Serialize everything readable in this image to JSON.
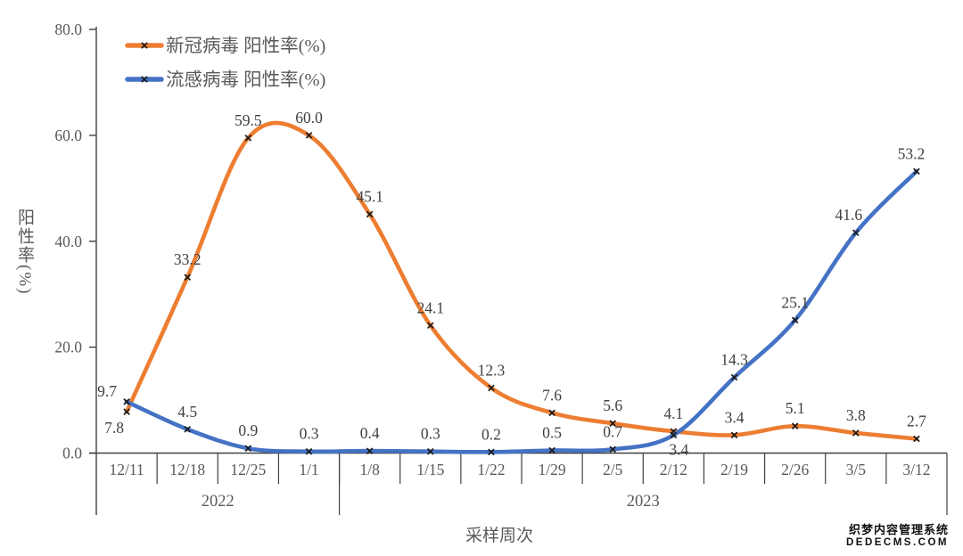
{
  "watermark": {
    "line1": "织梦内容管理系统",
    "line2": "DEDECMS.COM"
  },
  "chart_data": {
    "type": "line",
    "title": "",
    "xlabel": "采样周次",
    "ylabel": "阳性率(%)",
    "ylim": [
      0,
      80
    ],
    "ytick_step": 20,
    "ytick_labels": [
      "0.0",
      "20.0",
      "40.0",
      "60.0",
      "80.0"
    ],
    "grid": false,
    "legend_position": "top-left",
    "marker": "x",
    "line_style": "smooth",
    "categories": [
      "12/11",
      "12/18",
      "12/25",
      "1/1",
      "1/8",
      "1/15",
      "1/22",
      "1/29",
      "2/5",
      "2/12",
      "2/19",
      "2/26",
      "3/5",
      "3/12"
    ],
    "year_groups": [
      {
        "label": "2022",
        "start": 0,
        "end": 3
      },
      {
        "label": "2023",
        "start": 4,
        "end": 13
      }
    ],
    "series": [
      {
        "name": "新冠病毒 阳性率(%)",
        "color": "#ED7D31",
        "values": [
          7.8,
          33.2,
          59.5,
          60.0,
          45.1,
          24.1,
          12.3,
          7.6,
          5.6,
          4.1,
          3.4,
          5.1,
          3.8,
          2.7
        ]
      },
      {
        "name": "流感病毒 阳性率(%)",
        "color": "#4472C4",
        "values": [
          9.7,
          4.5,
          0.9,
          0.3,
          0.4,
          0.3,
          0.2,
          0.5,
          0.7,
          3.4,
          14.3,
          25.1,
          41.6,
          53.2
        ]
      }
    ]
  }
}
